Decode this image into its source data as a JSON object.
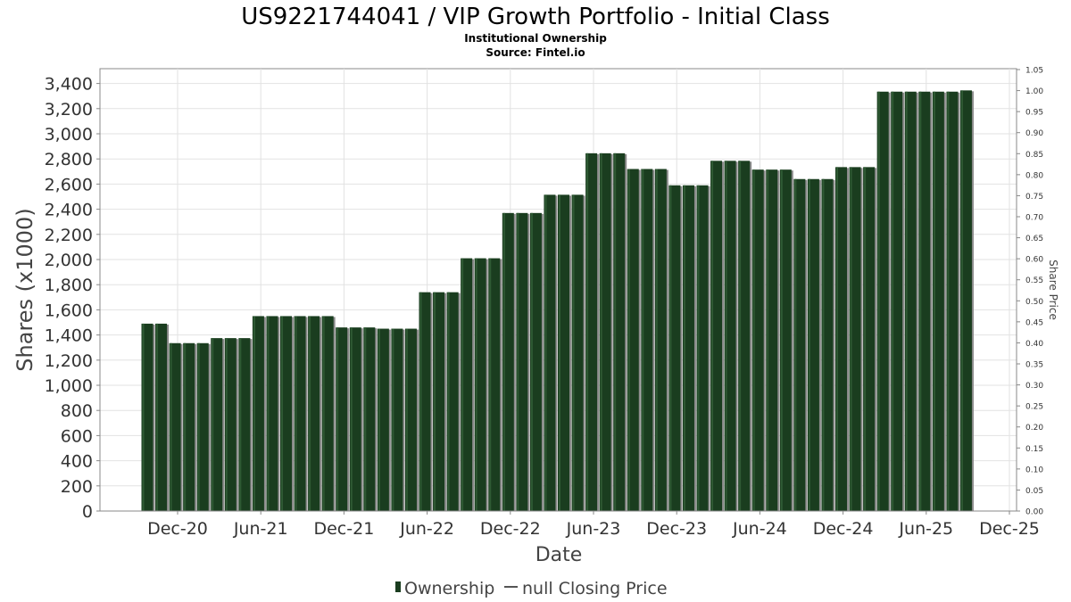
{
  "chart_data": {
    "type": "bar",
    "title": "US9221744041 / VIP Growth Portfolio - Initial Class",
    "subtitle_lines": [
      "Institutional Ownership",
      "Source: Fintel.io"
    ],
    "xlabel": "Date",
    "ylabel": "Shares (x1000)",
    "y2label": "Share Price",
    "ylim": [
      0,
      3500
    ],
    "y2lim": [
      0,
      1.05
    ],
    "yticks": [
      0,
      200,
      400,
      600,
      800,
      1000,
      1200,
      1400,
      1600,
      1800,
      2000,
      2200,
      2400,
      2600,
      2800,
      3000,
      3200,
      3400
    ],
    "yticklabels": [
      "0",
      "200",
      "400",
      "600",
      "800",
      "1,000",
      "1,200",
      "1,400",
      "1,600",
      "1,800",
      "2,000",
      "2,200",
      "2,400",
      "2,600",
      "2,800",
      "3,000",
      "3,200",
      "3,400"
    ],
    "y2ticks": [
      "0.00",
      "0.05",
      "0.10",
      "0.15",
      "0.20",
      "0.25",
      "0.30",
      "0.35",
      "0.40",
      "0.45",
      "0.50",
      "0.55",
      "0.60",
      "0.65",
      "0.70",
      "0.75",
      "0.80",
      "0.85",
      "0.90",
      "0.95",
      "1.00",
      "1.05"
    ],
    "xticks": [
      "Dec-20",
      "Jun-21",
      "Dec-21",
      "Jun-22",
      "Dec-22",
      "Jun-23",
      "Dec-23",
      "Jun-24",
      "Dec-24",
      "Jun-25",
      "Dec-25"
    ],
    "grid": true,
    "legend_position": "bottom",
    "series": [
      {
        "name": "Ownership",
        "color": "#1a3d1f",
        "values": [
          1490,
          1490,
          1335,
          1335,
          1335,
          1375,
          1375,
          1375,
          1550,
          1550,
          1550,
          1550,
          1550,
          1550,
          1460,
          1460,
          1460,
          1450,
          1450,
          1450,
          1740,
          1740,
          1740,
          2010,
          2010,
          2010,
          2370,
          2370,
          2370,
          2515,
          2515,
          2515,
          2845,
          2845,
          2845,
          2720,
          2720,
          2720,
          2590,
          2590,
          2590,
          2785,
          2785,
          2785,
          2715,
          2715,
          2715,
          2640,
          2640,
          2640,
          2735,
          2735,
          2735,
          3335,
          3335,
          3335,
          3335,
          3335,
          3335,
          3345
        ]
      },
      {
        "name": "null Closing Price",
        "color": "#555555",
        "values": []
      }
    ]
  }
}
